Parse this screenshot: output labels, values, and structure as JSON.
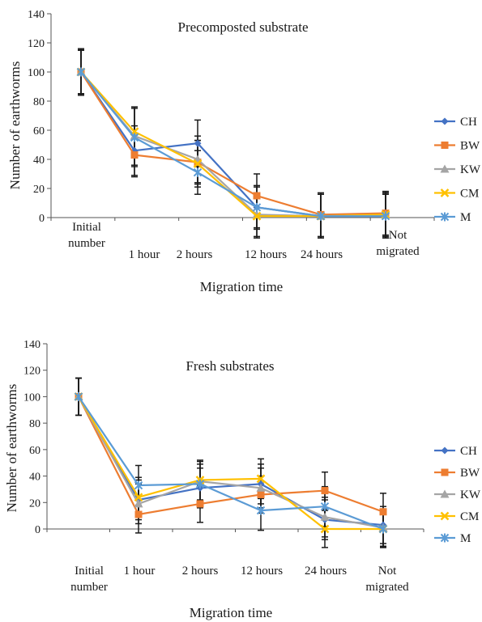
{
  "chart_data": [
    {
      "type": "line",
      "title": "Precomposted substrate",
      "xlabel": "Migration time",
      "ylabel": "Number of earthworms",
      "ylim": [
        0,
        140
      ],
      "yticks": [
        0,
        20,
        40,
        60,
        80,
        100,
        120,
        140
      ],
      "categories": [
        [
          "Initial",
          "number"
        ],
        [
          "1 hour"
        ],
        [
          "2 hours"
        ],
        [
          "12 hours"
        ],
        [
          "24 hours"
        ],
        [
          "Not",
          "migrated"
        ]
      ],
      "legend": "right",
      "series": [
        {
          "name": "CH",
          "color": "#4472c4",
          "marker": "diamond",
          "values": [
            100,
            46,
            51,
            7,
            1,
            1
          ],
          "errors": [
            15,
            17,
            16,
            14,
            15,
            15
          ]
        },
        {
          "name": "BW",
          "color": "#ed7d31",
          "marker": "square",
          "values": [
            100,
            43,
            38,
            15,
            2,
            3
          ],
          "errors": [
            15,
            15,
            15,
            15,
            15,
            15
          ]
        },
        {
          "name": "KW",
          "color": "#a5a5a5",
          "marker": "triangle",
          "values": [
            100,
            56,
            40,
            2,
            1,
            2
          ],
          "errors": [
            16,
            20,
            16,
            15,
            15,
            15
          ]
        },
        {
          "name": "CM",
          "color": "#ffc000",
          "marker": "x",
          "values": [
            100,
            59,
            37,
            1,
            1,
            2
          ],
          "errors": [
            15,
            17,
            16,
            15,
            15,
            15
          ]
        },
        {
          "name": "M",
          "color": "#5b9bd5",
          "marker": "star",
          "values": [
            100,
            55,
            31,
            7,
            1,
            1
          ],
          "errors": [
            15,
            20,
            15,
            15,
            15,
            15
          ]
        }
      ]
    },
    {
      "type": "line",
      "title": "Fresh substrates",
      "xlabel": "Migration time",
      "ylabel": "Number of earthworms",
      "ylim": [
        0,
        140
      ],
      "yticks": [
        0,
        20,
        40,
        60,
        80,
        100,
        120,
        140
      ],
      "categories": [
        [
          "Initial",
          "number"
        ],
        [
          "1 hour"
        ],
        [
          "2 hours"
        ],
        [
          "12 hours"
        ],
        [
          "24 hours"
        ],
        [
          "Not",
          "migrated"
        ]
      ],
      "legend": "right",
      "series": [
        {
          "name": "CH",
          "color": "#4472c4",
          "marker": "diamond",
          "values": [
            100,
            22,
            31,
            34,
            7,
            3
          ],
          "errors": [
            14,
            15,
            15,
            15,
            15,
            14
          ]
        },
        {
          "name": "BW",
          "color": "#ed7d31",
          "marker": "square",
          "values": [
            100,
            11,
            19,
            26,
            29,
            13
          ],
          "errors": [
            14,
            14,
            14,
            14,
            14,
            14
          ]
        },
        {
          "name": "KW",
          "color": "#a5a5a5",
          "marker": "triangle",
          "values": [
            100,
            19,
            36,
            31,
            9,
            1
          ],
          "errors": [
            14,
            15,
            15,
            15,
            15,
            14
          ]
        },
        {
          "name": "CM",
          "color": "#ffc000",
          "marker": "x",
          "values": [
            100,
            24,
            37,
            38,
            0,
            0
          ],
          "errors": [
            14,
            15,
            15,
            15,
            14,
            14
          ]
        },
        {
          "name": "M",
          "color": "#5b9bd5",
          "marker": "star",
          "values": [
            100,
            33,
            34,
            14,
            17,
            0
          ],
          "errors": [
            14,
            15,
            15,
            15,
            15,
            14
          ]
        }
      ]
    }
  ]
}
